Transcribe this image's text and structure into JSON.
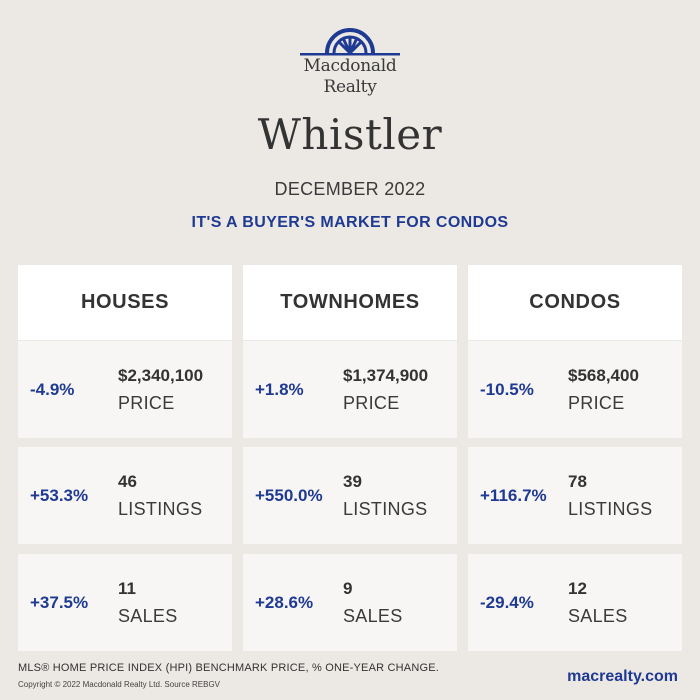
{
  "brand": {
    "line1": "Macdonald",
    "line2": "Realty",
    "logo_icon": "arched-window-logo-icon",
    "logo_color": "#1f3a93"
  },
  "city": "Whistler",
  "date": "DECEMBER 2022",
  "headline": "IT'S A BUYER'S MARKET FOR CONDOS",
  "columns": [
    {
      "title": "HOUSES",
      "price": {
        "change": "-4.9%",
        "value": "$2,340,100",
        "label": "PRICE"
      },
      "listings": {
        "change": "+53.3%",
        "value": "46",
        "label": "LISTINGS"
      },
      "sales": {
        "change": "+37.5%",
        "value": "11",
        "label": "SALES"
      }
    },
    {
      "title": "TOWNHOMES",
      "price": {
        "change": "+1.8%",
        "value": "$1,374,900",
        "label": "PRICE"
      },
      "listings": {
        "change": "+550.0%",
        "value": "39",
        "label": "LISTINGS"
      },
      "sales": {
        "change": "+28.6%",
        "value": "9",
        "label": "SALES"
      }
    },
    {
      "title": "CONDOS",
      "price": {
        "change": "-10.5%",
        "value": "$568,400",
        "label": "PRICE"
      },
      "listings": {
        "change": "+116.7%",
        "value": "78",
        "label": "LISTINGS"
      },
      "sales": {
        "change": "-29.4%",
        "value": "12",
        "label": "SALES"
      }
    }
  ],
  "footer": {
    "note": "MLS® HOME PRICE INDEX (HPI) BENCHMARK PRICE, % ONE-YEAR CHANGE.",
    "copyright": "Copyright © 2022 Macdonald Realty Ltd. Source REBGV",
    "website": "macrealty.com"
  },
  "colors": {
    "accent": "#1f3a93",
    "background": "#ece8e4",
    "card_header": "#ffffff",
    "card_body": "#f7f6f4"
  }
}
